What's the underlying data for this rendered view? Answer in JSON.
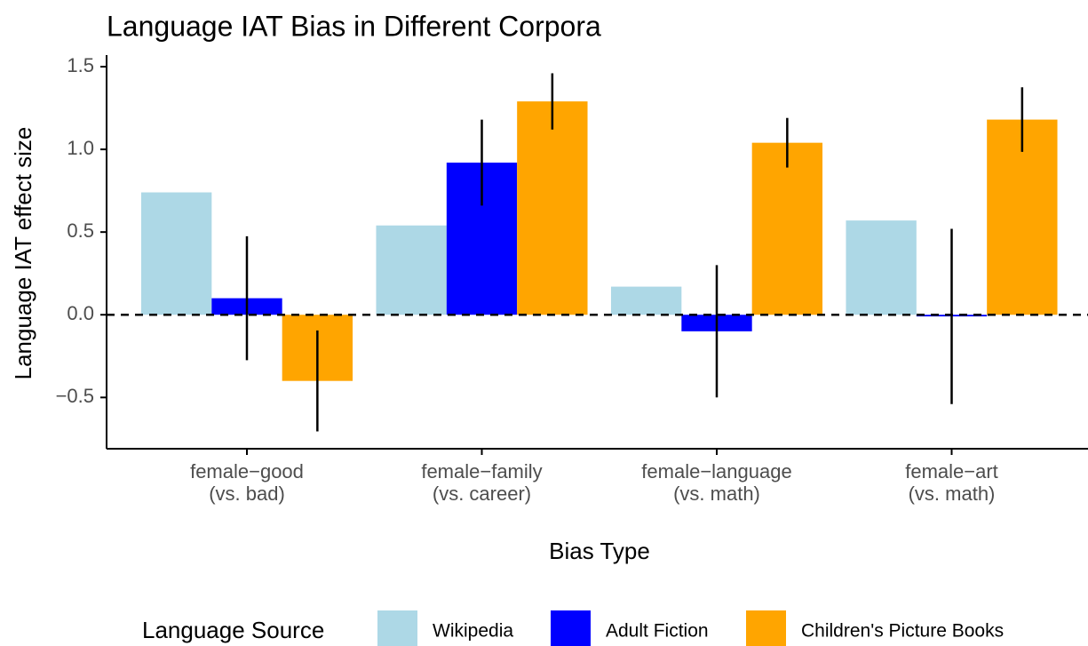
{
  "chart_data": {
    "type": "bar",
    "title": "Language IAT Bias in Different Corpora",
    "x_label": "Bias Type",
    "y_label": "Language IAT effect size",
    "legend_title": "Language Source",
    "legend_position": "bottom",
    "categories": [
      "female−good\n(vs. bad)",
      "female−family\n(vs. career)",
      "female−language\n(vs. math)",
      "female−art\n(vs. math)"
    ],
    "series": [
      {
        "name": "Wikipedia",
        "color": "#add8e6",
        "values": [
          0.74,
          0.54,
          0.17,
          0.57
        ]
      },
      {
        "name": "Adult Fiction",
        "color": "#0000ff",
        "values": [
          0.1,
          0.92,
          -0.1,
          -0.01
        ],
        "errors": [
          0.375,
          0.26,
          0.4,
          0.53
        ]
      },
      {
        "name": "Children's Picture Books",
        "color": "#ffa500",
        "values": [
          -0.4,
          1.29,
          1.04,
          1.18
        ],
        "errors": [
          0.305,
          0.17,
          0.15,
          0.195
        ]
      }
    ],
    "reference_line": 0,
    "ylim": [
      -0.81,
      1.57
    ],
    "yticks": [
      {
        "value": -0.5,
        "label": "−0.5"
      },
      {
        "value": 0,
        "label": "0.0"
      },
      0.5,
      {
        "value": 1,
        "label": "1.0"
      },
      1.5
    ]
  }
}
